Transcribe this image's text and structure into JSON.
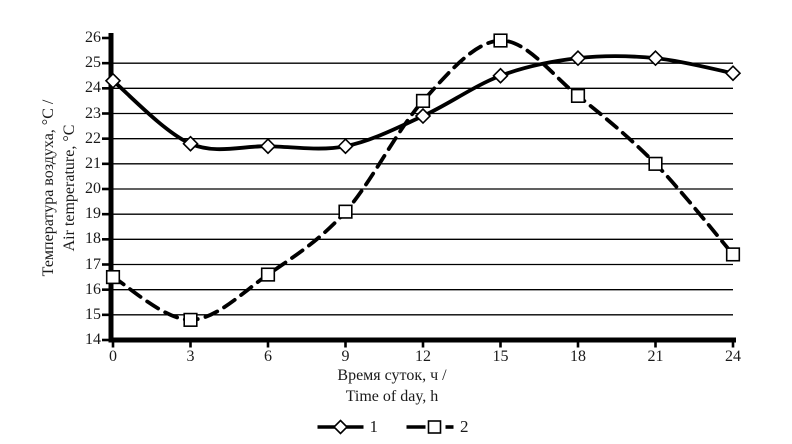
{
  "chart_data": {
    "type": "line",
    "x": [
      0,
      3,
      6,
      9,
      12,
      15,
      18,
      21,
      24
    ],
    "yticks": [
      14,
      15,
      16,
      17,
      18,
      19,
      20,
      21,
      22,
      23,
      24,
      25,
      26
    ],
    "xlim": [
      0,
      24
    ],
    "ylim": [
      14,
      26
    ],
    "grid": "horizontal",
    "legend_position": "bottom-center",
    "ylabel_lines": [
      "Температура воздуха, °C /",
      "Air  temperature, °C"
    ],
    "xlabel_lines": [
      "Время суток, ч /",
      "Time of day, h"
    ],
    "series": [
      {
        "name": "1",
        "line_style": "solid",
        "marker": "diamond",
        "values": [
          24.3,
          21.8,
          21.7,
          21.7,
          22.9,
          24.5,
          25.2,
          25.2,
          24.6
        ]
      },
      {
        "name": "2",
        "line_style": "dashed",
        "marker": "square",
        "values": [
          16.5,
          14.8,
          16.6,
          19.1,
          23.5,
          25.9,
          23.7,
          21.0,
          17.4
        ]
      }
    ],
    "colors": {
      "line": "#000000",
      "marker_fill": "#ffffff",
      "text": "#1a1a1a",
      "background": "#ffffff"
    }
  }
}
